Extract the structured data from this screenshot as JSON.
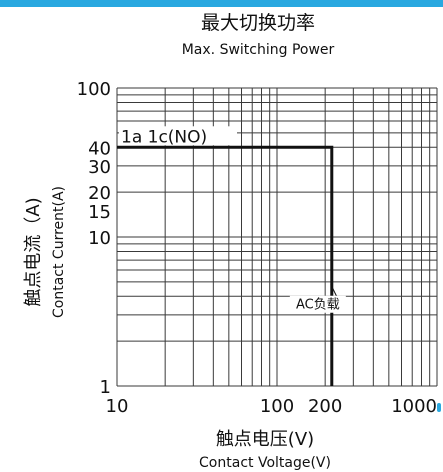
{
  "colors": {
    "accent": "#29a8e0",
    "grid": "#3a3a3a",
    "curve": "#111111",
    "text": "#111111"
  },
  "chart_data": {
    "type": "line",
    "title": "最大切换功率",
    "subtitle": "Max. Switching Power",
    "xlabel": "触点电压(V)",
    "xlabel_en": "Contact Voltage(V)",
    "ylabel": "触点电流（A)",
    "ylabel_en": "Contact Current(A)",
    "x_scale": "log",
    "y_scale": "log",
    "xlim": [
      10,
      1000
    ],
    "ylim": [
      1,
      100
    ],
    "grid": true,
    "x_ticks": [
      {
        "value": 10,
        "label": "10"
      },
      {
        "value": 100,
        "label": "100"
      },
      {
        "value": 200,
        "label": "200"
      },
      {
        "value": 1000,
        "label": "1000"
      }
    ],
    "y_ticks": [
      {
        "value": 1,
        "label": "1"
      },
      {
        "value": 10,
        "label": "10"
      },
      {
        "value": 15,
        "label": "15"
      },
      {
        "value": 20,
        "label": "20"
      },
      {
        "value": 30,
        "label": "30"
      },
      {
        "value": 40,
        "label": "40"
      },
      {
        "value": 100,
        "label": "100"
      }
    ],
    "series": [
      {
        "name": "1a  1c(NO)",
        "points": [
          [
            10,
            40
          ],
          [
            220,
            40
          ],
          [
            220,
            1
          ]
        ]
      }
    ],
    "annotations": [
      {
        "text": "AC负载",
        "x": 180,
        "y": 3.3,
        "arrow_to": [
          220,
          4.8
        ]
      }
    ]
  }
}
